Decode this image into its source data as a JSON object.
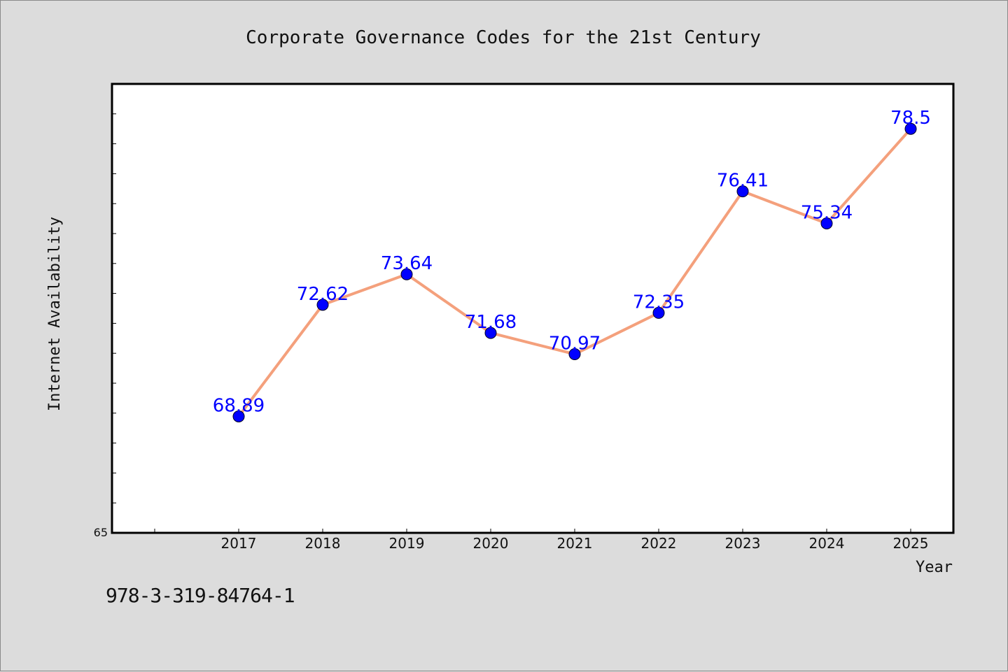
{
  "chart_data": {
    "type": "line",
    "title": "Corporate Governance Codes for the 21st Century",
    "xlabel": "Year",
    "ylabel": "Internet Availability",
    "x": [
      "2017",
      "2018",
      "2019",
      "2020",
      "2021",
      "2022",
      "2023",
      "2024",
      "2025"
    ],
    "series": [
      {
        "values": [
          68.89,
          72.62,
          73.64,
          71.68,
          70.97,
          72.35,
          76.41,
          75.34,
          78.5
        ],
        "labels": [
          "68.89",
          "72.62",
          "73.64",
          "71.68",
          "70.97",
          "72.35",
          "76.41",
          "75.34",
          "78.5"
        ]
      }
    ],
    "ylim": [
      65,
      80
    ],
    "y_tick_labels": [
      "65"
    ],
    "grid": false,
    "colors": {
      "line": "#f4a07c",
      "marker": "#0000ff",
      "label": "#0000ff"
    }
  },
  "footer": {
    "isbn": "978-3-319-84764-1"
  }
}
